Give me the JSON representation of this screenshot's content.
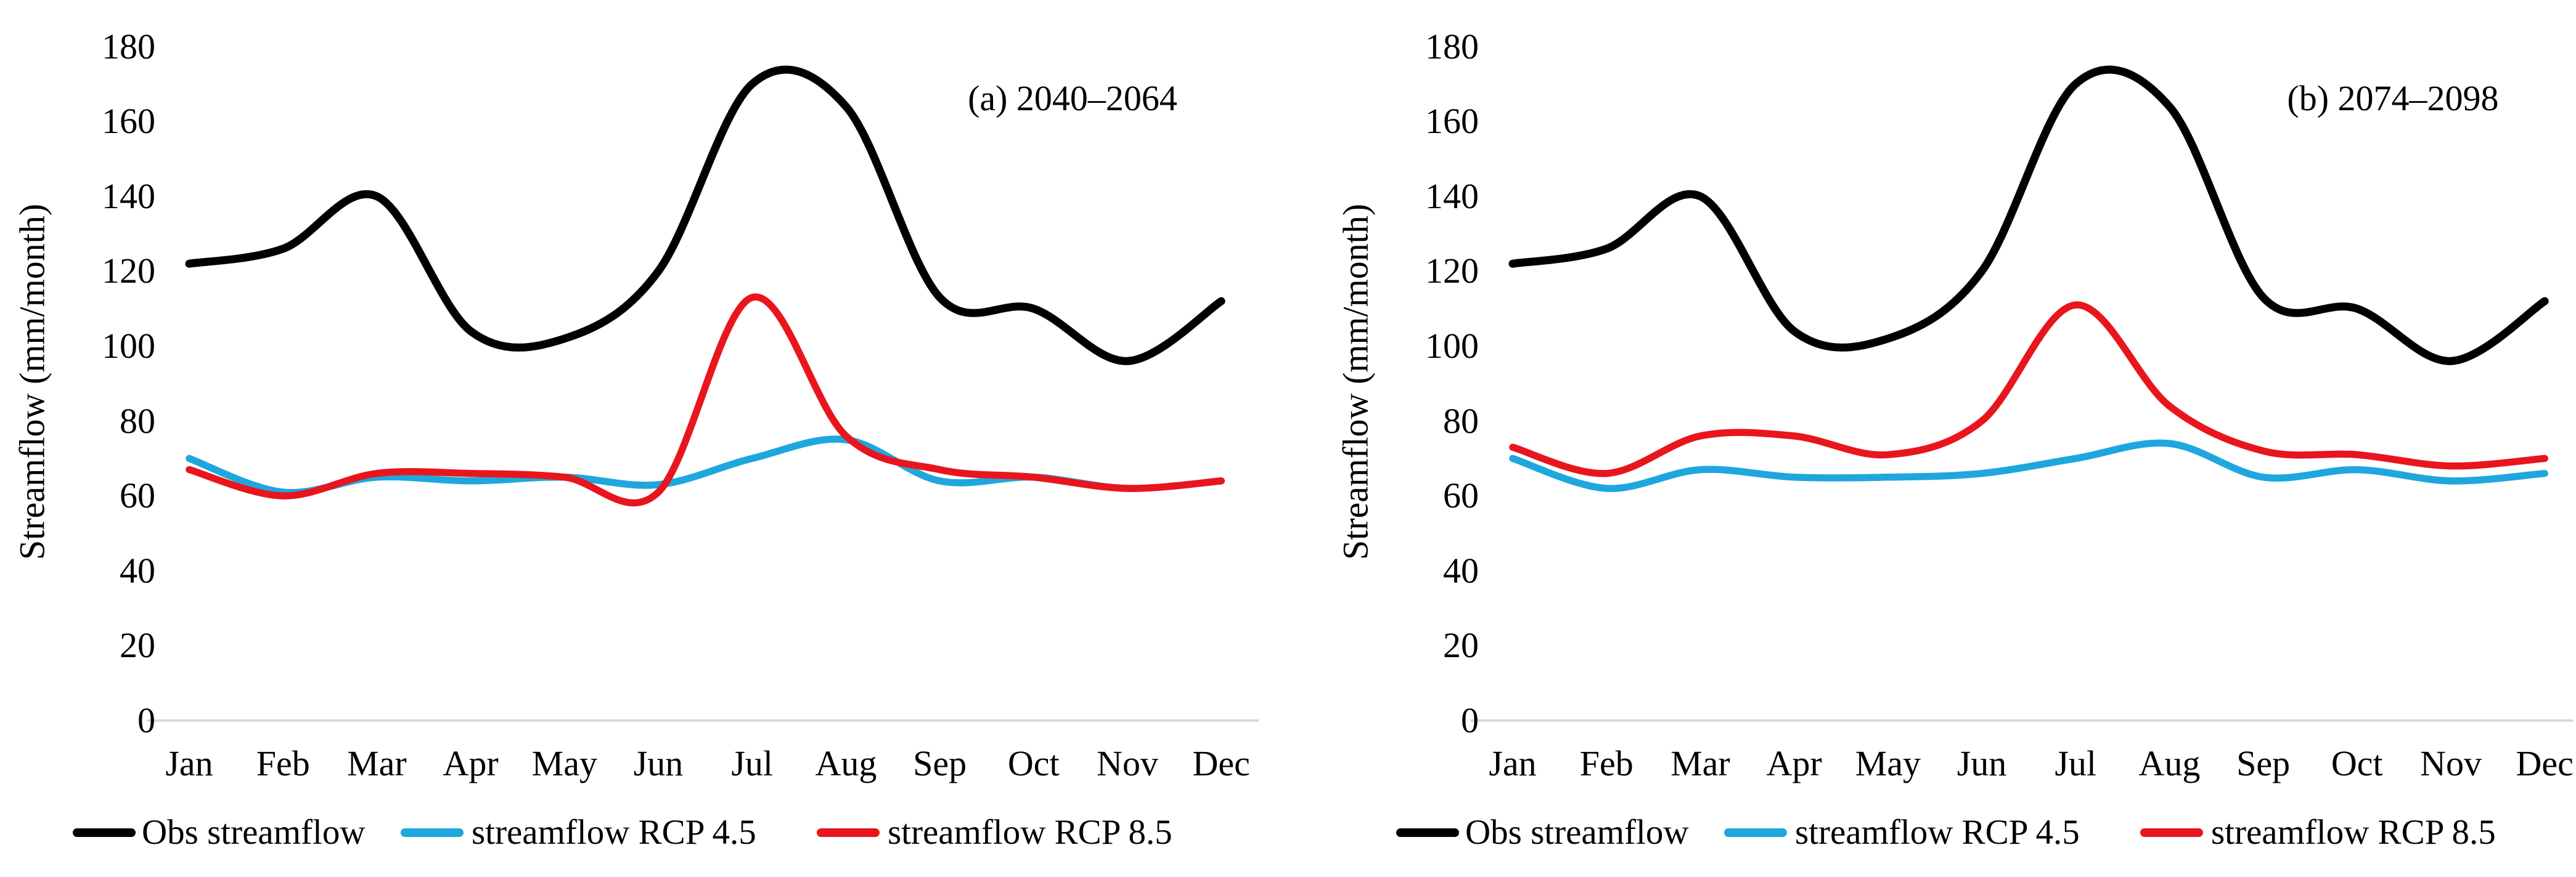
{
  "figure": {
    "background": "#ffffff",
    "text_color": "#000000",
    "axis_color": "#d8d8d8"
  },
  "chart_data": [
    {
      "id": "a",
      "type": "line",
      "title": "(a) 2040–2064",
      "xlabel": "",
      "ylabel": "Streamflow (mm/month)",
      "categories": [
        "Jan",
        "Feb",
        "Mar",
        "Apr",
        "May",
        "Jun",
        "Jul",
        "Aug",
        "Sep",
        "Oct",
        "Nov",
        "Dec"
      ],
      "ylim": [
        0,
        180
      ],
      "yticks": [
        0,
        20,
        40,
        60,
        80,
        100,
        120,
        140,
        160,
        180
      ],
      "grid": false,
      "line_style": "smooth",
      "legend_position": "bottom",
      "axis_color": "#d8d8d8",
      "series": [
        {
          "name": "Obs streamflow",
          "color": "#000000",
          "values": [
            122,
            126,
            140,
            104,
            102,
            120,
            170,
            164,
            113,
            110,
            96,
            112
          ]
        },
        {
          "name": "streamflow RCP 4.5",
          "color": "#1ea7dd",
          "values": [
            70,
            61,
            65,
            64,
            65,
            63,
            70,
            75,
            64,
            65,
            62,
            64
          ]
        },
        {
          "name": "streamflow RCP 8.5",
          "color": "#e9151d",
          "values": [
            67,
            60,
            66,
            66,
            65,
            61,
            113,
            76,
            67,
            65,
            62,
            64
          ]
        }
      ]
    },
    {
      "id": "b",
      "type": "line",
      "title": "(b) 2074–2098",
      "xlabel": "",
      "ylabel": "Streamflow (mm/month)",
      "categories": [
        "Jan",
        "Feb",
        "Mar",
        "Apr",
        "May",
        "Jun",
        "Jul",
        "Aug",
        "Sep",
        "Oct",
        "Nov",
        "Dec"
      ],
      "ylim": [
        0,
        180
      ],
      "yticks": [
        0,
        20,
        40,
        60,
        80,
        100,
        120,
        140,
        160,
        180
      ],
      "grid": false,
      "line_style": "smooth",
      "legend_position": "bottom",
      "axis_color": "#d8d8d8",
      "series": [
        {
          "name": "Obs streamflow",
          "color": "#000000",
          "values": [
            122,
            126,
            140,
            104,
            102,
            120,
            170,
            164,
            113,
            110,
            96,
            112
          ]
        },
        {
          "name": "streamflow RCP 4.5",
          "color": "#1ea7dd",
          "values": [
            70,
            62,
            67,
            65,
            65,
            66,
            70,
            74,
            65,
            67,
            64,
            66
          ]
        },
        {
          "name": "streamflow RCP 8.5",
          "color": "#e9151d",
          "values": [
            73,
            66,
            76,
            76,
            71,
            80,
            111,
            84,
            72,
            71,
            68,
            70
          ]
        }
      ]
    }
  ]
}
